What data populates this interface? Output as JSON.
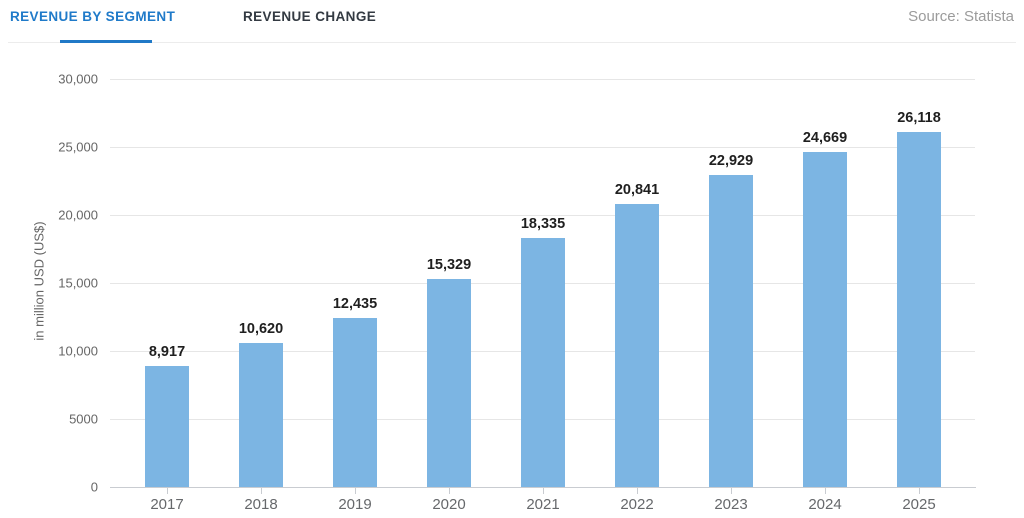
{
  "tabs": [
    {
      "label": "REVENUE BY SEGMENT",
      "active": true
    },
    {
      "label": "REVENUE CHANGE",
      "active": false
    }
  ],
  "source_label": "Source: Statista",
  "colors": {
    "bar": "#7cb5e3",
    "active_tab": "#1f7ac9",
    "inactive_tab": "#333a42",
    "tab_underline": "#2079c7",
    "gridline": "#e6e6e6",
    "axis_line": "#c9ccd1",
    "tick_text": "#666666",
    "value_label_text": "#1f1f1f",
    "source_text": "#9b9b9b"
  },
  "chart_data": {
    "type": "bar",
    "categories": [
      "2017",
      "2018",
      "2019",
      "2020",
      "2021",
      "2022",
      "2023",
      "2024",
      "2025"
    ],
    "values": [
      8917,
      10620,
      12435,
      15329,
      18335,
      20841,
      22929,
      24669,
      26118
    ],
    "value_labels": [
      "8,917",
      "10,620",
      "12,435",
      "15,329",
      "18,335",
      "20,841",
      "22,929",
      "24,669",
      "26,118"
    ],
    "title": "",
    "xlabel": "",
    "ylabel": "in million USD (US$)",
    "ylim": [
      0,
      30000
    ],
    "ytick_interval": 5000,
    "ytick_labels": [
      "0",
      "5000",
      "10,000",
      "15,000",
      "20,000",
      "25,000",
      "30,000"
    ],
    "grid": true,
    "legend": false,
    "bar_color": "#7cb5e3"
  }
}
